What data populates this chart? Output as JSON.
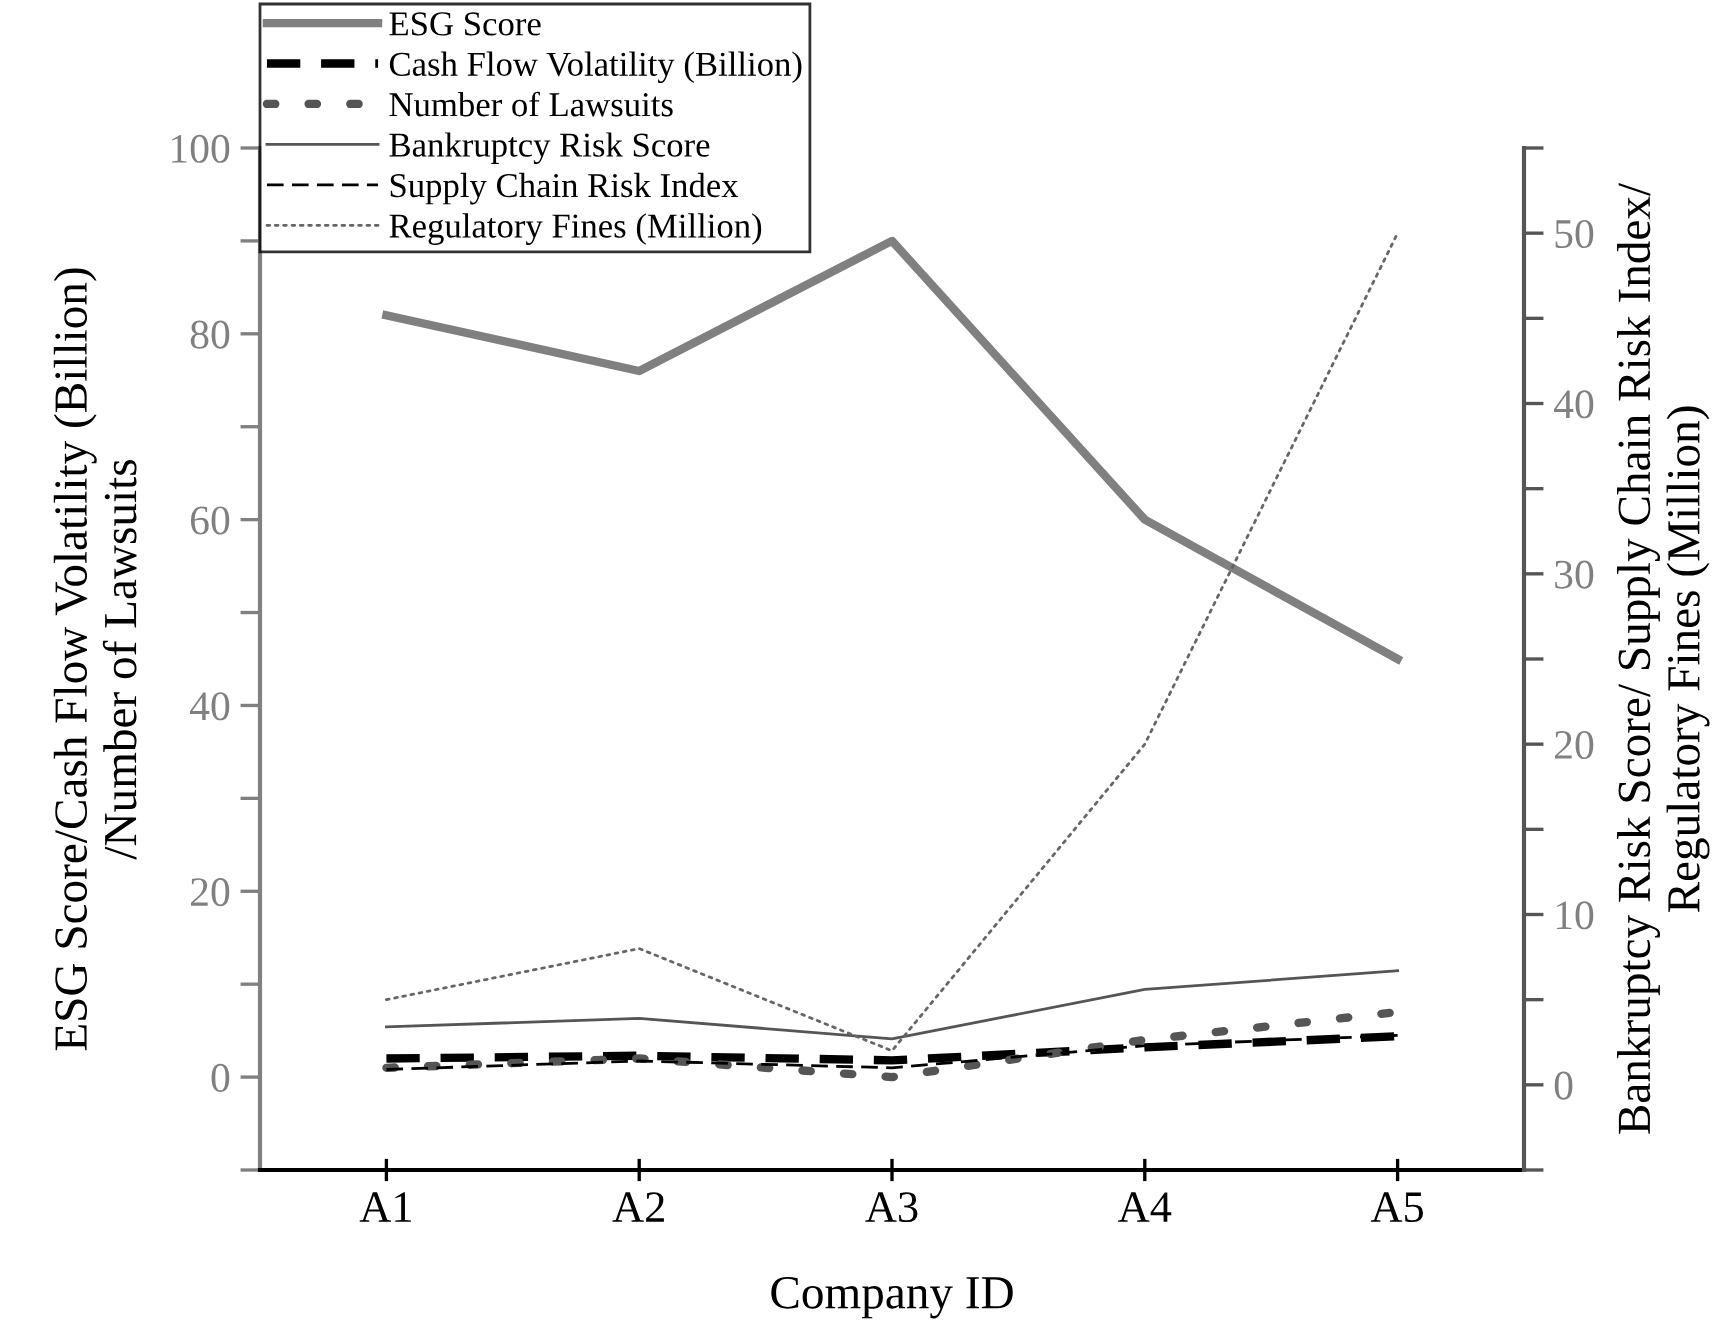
{
  "chart_data": {
    "type": "line",
    "xlabel": "Company ID",
    "ylabel": "ESG Score/Cash Flow Volatility (Billion)\n/Number of Lawsuits",
    "y2label": "Bankruptcy Risk Score/ Supply Chain Risk Index/\nRegulatory Fines (Million)",
    "categories": [
      "A1",
      "A2",
      "A3",
      "A4",
      "A5"
    ],
    "series": [
      {
        "name": "ESG Score",
        "color": "#808080",
        "line_style": "solid",
        "values": [
          82,
          76,
          90,
          60,
          45
        ]
      },
      {
        "name": "Cash Flow Volatility (Billion)",
        "color": "#000000",
        "line_style": "dashed",
        "values": [
          2,
          2.3,
          1.8,
          3.2,
          4.4
        ]
      },
      {
        "name": "Number of Lawsuits",
        "color": "#555555",
        "line_style": "dotted",
        "values": [
          1,
          2,
          0,
          4,
          7
        ]
      },
      {
        "name": "Bankruptcy Risk Score",
        "color": "#555555",
        "line_style": "solid",
        "axis": "y2",
        "values": [
          3.4,
          3.9,
          2.7,
          5.6,
          6.7
        ]
      },
      {
        "name": "Supply Chain Risk Index",
        "color": "#000000",
        "line_style": "dashed",
        "axis": "y2",
        "values": [
          0.9,
          1.4,
          1.0,
          2.3,
          2.9
        ]
      },
      {
        "name": "Regulatory Fines (Million)",
        "color": "#666666",
        "line_style": "dotted",
        "axis": "y2",
        "values": [
          5,
          8,
          2,
          20,
          50
        ]
      }
    ],
    "ylim": [
      -10,
      100
    ],
    "yticks": [
      {
        "value": -10,
        "label": null
      },
      0,
      {
        "value": 10,
        "label": null
      },
      20,
      {
        "value": 30,
        "label": null
      },
      40,
      {
        "value": 50,
        "label": null
      },
      60,
      {
        "value": 70,
        "label": null
      },
      80,
      {
        "value": 90,
        "label": null
      },
      100
    ],
    "y2lim": [
      -5,
      55
    ],
    "y2ticks": [
      {
        "value": -5,
        "label": null
      },
      0,
      {
        "value": 5,
        "label": null
      },
      10,
      {
        "value": 15,
        "label": null
      },
      20,
      {
        "value": 25,
        "label": null
      },
      30,
      {
        "value": 35,
        "label": null
      },
      40,
      {
        "value": 45,
        "label": null
      },
      50,
      {
        "value": 55,
        "label": null
      }
    ],
    "grid": false,
    "legend": "top left",
    "marker": "none"
  }
}
